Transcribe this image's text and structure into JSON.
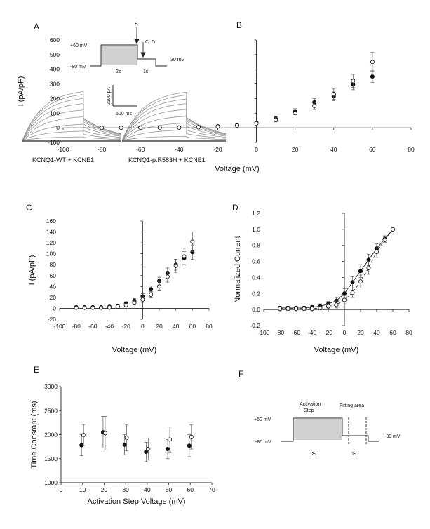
{
  "panels": {
    "A": {
      "label": "A",
      "protocol_labels": [
        "+60 mV",
        "-80 mV",
        "2s",
        "1s",
        "30 mV",
        "B",
        "C, D"
      ],
      "scale_current": "2500 pA",
      "scale_time": "500 ms",
      "traces": [
        {
          "caption": "KCNQ1-WT + KCNE1",
          "steady_levels": [
            0.06,
            0.16,
            0.28,
            0.41,
            0.53,
            0.64,
            0.73,
            0.8,
            0.85
          ],
          "tail_levels": [
            0.05,
            0.1,
            0.16,
            0.22,
            0.27,
            0.31,
            0.34,
            0.36,
            0.37
          ]
        },
        {
          "caption": "KCNQ1-p.R583H + KCNE1",
          "steady_levels": [
            0.07,
            0.18,
            0.3,
            0.42,
            0.54,
            0.64,
            0.72,
            0.79,
            0.84
          ],
          "tail_levels": [
            0.05,
            0.11,
            0.17,
            0.23,
            0.28,
            0.32,
            0.35,
            0.37,
            0.38
          ]
        }
      ]
    },
    "F": {
      "label": "F",
      "protocol_labels": [
        "Activation",
        "Step",
        "Fitting area",
        "+60 mV",
        "-80 mV",
        "2s",
        "1s",
        "-30 mV"
      ]
    }
  },
  "chart_data": [
    {
      "id": "B",
      "label": "B",
      "type": "scatter",
      "xlabel": "Voltage (mV)",
      "ylabel": "I (pA/pF)",
      "xlim": [
        -100,
        80
      ],
      "ylim": [
        -100,
        600
      ],
      "xticks": [
        -100,
        -80,
        -60,
        -40,
        -20,
        0,
        20,
        40,
        60,
        80
      ],
      "yticks": [
        -100,
        0,
        100,
        200,
        300,
        400,
        500,
        600
      ],
      "x": [
        -80,
        -70,
        -60,
        -50,
        -40,
        -30,
        -20,
        -10,
        0,
        10,
        20,
        30,
        40,
        50,
        60
      ],
      "series": [
        {
          "marker": "filled",
          "values": [
            0,
            0,
            1,
            1,
            2,
            5,
            10,
            18,
            35,
            65,
            110,
            175,
            215,
            295,
            350
          ],
          "err": [
            2,
            2,
            2,
            3,
            3,
            4,
            5,
            8,
            10,
            15,
            20,
            25,
            30,
            35,
            40
          ]
        },
        {
          "marker": "open",
          "values": [
            0,
            0,
            0,
            0,
            1,
            3,
            8,
            15,
            30,
            55,
            100,
            150,
            230,
            320,
            450
          ],
          "err": [
            2,
            2,
            2,
            3,
            3,
            4,
            5,
            8,
            10,
            15,
            20,
            25,
            35,
            45,
            65
          ]
        }
      ]
    },
    {
      "id": "C",
      "label": "C",
      "type": "scatter",
      "xlabel": "Voltage (mV)",
      "ylabel": "I (pA/pF)",
      "xlim": [
        -100,
        80
      ],
      "ylim": [
        -20,
        160
      ],
      "xticks": [
        -100,
        -80,
        -60,
        -40,
        -20,
        0,
        20,
        40,
        60,
        80
      ],
      "yticks": [
        -20,
        0,
        20,
        40,
        60,
        80,
        100,
        120,
        140,
        160
      ],
      "x": [
        -80,
        -70,
        -60,
        -50,
        -40,
        -30,
        -20,
        -10,
        0,
        10,
        20,
        30,
        40,
        50,
        60
      ],
      "series": [
        {
          "marker": "filled",
          "values": [
            2,
            2,
            2,
            2,
            3,
            4,
            9,
            14,
            22,
            35,
            50,
            65,
            80,
            92,
            103
          ],
          "err": [
            1,
            1,
            1,
            1,
            1,
            2,
            3,
            4,
            5,
            6,
            7,
            9,
            10,
            12,
            13
          ]
        },
        {
          "marker": "open",
          "values": [
            1,
            1,
            1,
            1,
            2,
            3,
            6,
            10,
            16,
            25,
            40,
            58,
            78,
            95,
            122
          ],
          "err": [
            1,
            1,
            1,
            1,
            1,
            2,
            3,
            4,
            5,
            6,
            8,
            10,
            12,
            15,
            18
          ]
        }
      ]
    },
    {
      "id": "D",
      "label": "D",
      "type": "line",
      "xlabel": "Voltage (mV)",
      "ylabel": "Normalized Current",
      "xlim": [
        -100,
        80
      ],
      "ylim": [
        -0.2,
        1.2
      ],
      "xticks": [
        -100,
        -80,
        -60,
        -40,
        -20,
        0,
        20,
        40,
        60,
        80
      ],
      "yticks": [
        -0.2,
        0,
        0.2,
        0.4,
        0.6,
        0.8,
        1,
        1.2
      ],
      "yticklabels": [
        "-0.2",
        "0.0",
        "0.2",
        "0.4",
        "0.6",
        "0.8",
        "1.0",
        "1.2"
      ],
      "x": [
        -80,
        -70,
        -60,
        -50,
        -40,
        -30,
        -20,
        -10,
        0,
        10,
        20,
        30,
        40,
        50,
        60
      ],
      "series": [
        {
          "marker": "filled",
          "line": "solid",
          "values": [
            0.02,
            0.02,
            0.02,
            0.02,
            0.03,
            0.04,
            0.07,
            0.11,
            0.2,
            0.34,
            0.48,
            0.62,
            0.76,
            0.88,
            1.0
          ],
          "err": [
            0.02,
            0.02,
            0.02,
            0.02,
            0.02,
            0.03,
            0.03,
            0.04,
            0.06,
            0.07,
            0.08,
            0.07,
            0.06,
            0.04,
            0
          ]
        },
        {
          "marker": "open",
          "line": "dashed",
          "values": [
            0.01,
            0.01,
            0.01,
            0.01,
            0.01,
            0.02,
            0.04,
            0.06,
            0.12,
            0.21,
            0.35,
            0.52,
            0.72,
            0.87,
            1.0
          ],
          "err": [
            0.02,
            0.02,
            0.02,
            0.02,
            0.02,
            0.02,
            0.03,
            0.04,
            0.05,
            0.06,
            0.08,
            0.08,
            0.07,
            0.04,
            0
          ]
        }
      ]
    },
    {
      "id": "E",
      "label": "E",
      "type": "scatter",
      "xlabel": "Activation Step Voltage (mV)",
      "ylabel": "Time Constant (ms)",
      "xlim": [
        0,
        70
      ],
      "ylim": [
        1000,
        3000
      ],
      "xticks": [
        0,
        10,
        20,
        30,
        40,
        50,
        60,
        70
      ],
      "yticks": [
        1000,
        1500,
        2000,
        2500,
        3000
      ],
      "x": [
        10,
        20,
        30,
        40,
        50,
        60
      ],
      "series": [
        {
          "marker": "filled",
          "values": [
            1780,
            2050,
            1790,
            1640,
            1700,
            1770
          ],
          "err": [
            220,
            330,
            210,
            200,
            200,
            230
          ]
        },
        {
          "marker": "open",
          "values": [
            1990,
            2030,
            1930,
            1700,
            1900,
            1950
          ],
          "err": [
            220,
            350,
            270,
            230,
            260,
            250
          ]
        }
      ]
    }
  ]
}
